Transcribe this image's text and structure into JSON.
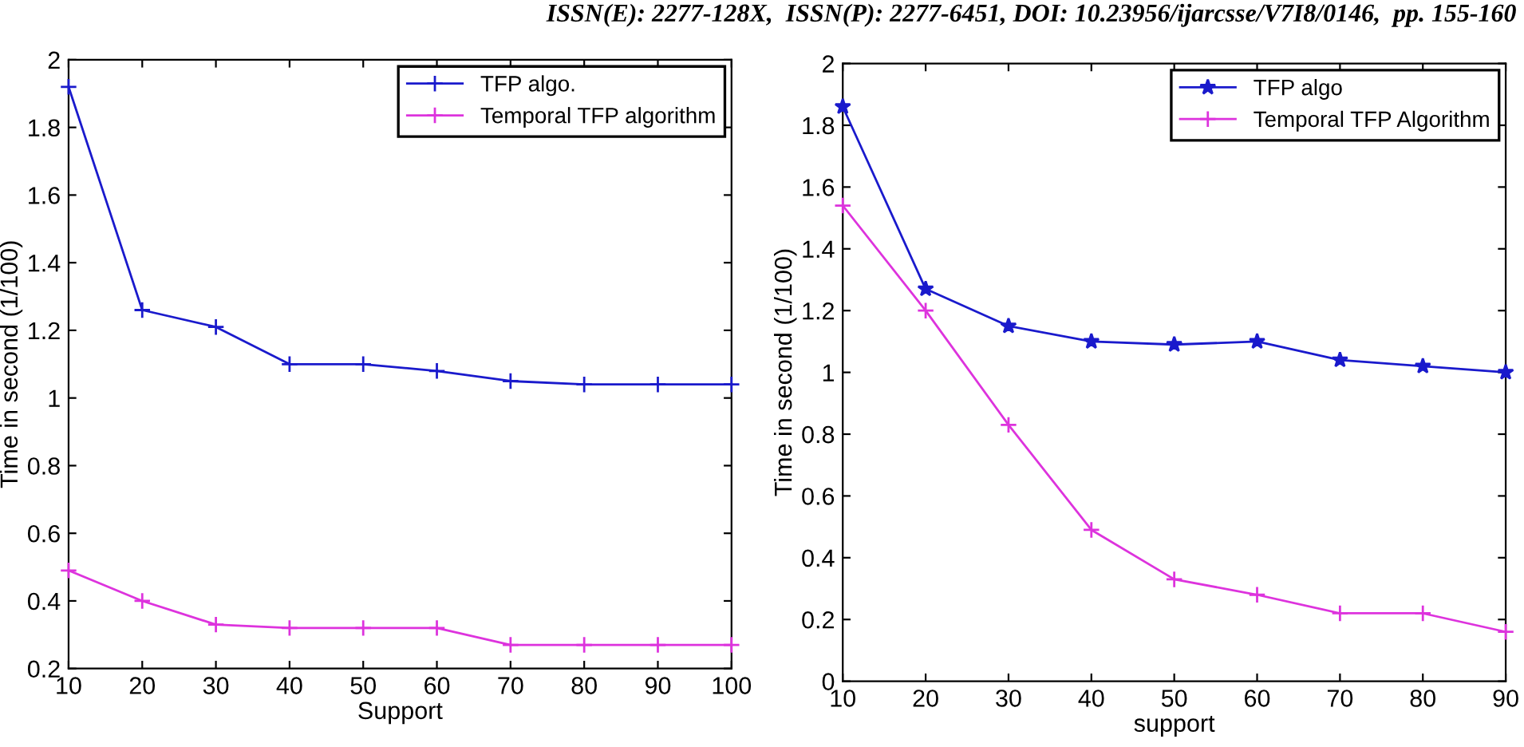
{
  "chart_data": [
    {
      "type": "line",
      "xlabel": "Support",
      "ylabel": "Time in second (1/100)",
      "annotations": [
        "ISSN(E): 2277-128X,  ISSN(P): 2277-6451, DOI: 10.23956/ijarcsse/V7I8/0146,  pp. 155-160"
      ],
      "x": [
        10,
        20,
        30,
        40,
        50,
        60,
        70,
        80,
        90,
        100
      ],
      "series": [
        {
          "name": "TFP algo.",
          "color": "#1a1acc",
          "marker": "cross",
          "values": [
            1.92,
            1.26,
            1.21,
            1.1,
            1.1,
            1.08,
            1.05,
            1.04,
            1.04,
            1.04
          ]
        },
        {
          "name": "Temporal TFP algorithm",
          "color": "#dd33dd",
          "marker": "cross",
          "values": [
            0.49,
            0.4,
            0.33,
            0.32,
            0.32,
            0.32,
            0.27,
            0.27,
            0.27,
            0.27
          ]
        }
      ],
      "xlim": [
        10,
        100
      ],
      "xticks": [
        10,
        20,
        30,
        40,
        50,
        60,
        70,
        80,
        90,
        100
      ],
      "ylim": [
        0.2,
        2
      ],
      "yticks": [
        0.2,
        0.4,
        0.6,
        0.8,
        1,
        1.2,
        1.4,
        1.6,
        1.8,
        2
      ],
      "legend": "top right",
      "line_style": "solid"
    },
    {
      "type": "line",
      "xlabel": "support",
      "ylabel": "Time in second (1/100)",
      "x": [
        10,
        20,
        30,
        40,
        50,
        60,
        70,
        80,
        90
      ],
      "series": [
        {
          "name": "TFP algo",
          "color": "#1a1acc",
          "marker": "star",
          "values": [
            1.86,
            1.27,
            1.15,
            1.1,
            1.09,
            1.1,
            1.04,
            1.02,
            1.0
          ]
        },
        {
          "name": "Temporal TFP Algorithm",
          "color": "#dd33dd",
          "marker": "cross",
          "values": [
            1.54,
            1.2,
            0.83,
            0.49,
            0.33,
            0.28,
            0.22,
            0.22,
            0.16
          ]
        }
      ],
      "xlim": [
        10,
        90
      ],
      "xticks": [
        10,
        20,
        30,
        40,
        50,
        60,
        70,
        80,
        90
      ],
      "ylim": [
        0,
        2
      ],
      "yticks": [
        0,
        0.2,
        0.4,
        0.6,
        0.8,
        1,
        1.2,
        1.4,
        1.6,
        1.8,
        2
      ],
      "legend": "top right",
      "line_style": "solid"
    }
  ]
}
